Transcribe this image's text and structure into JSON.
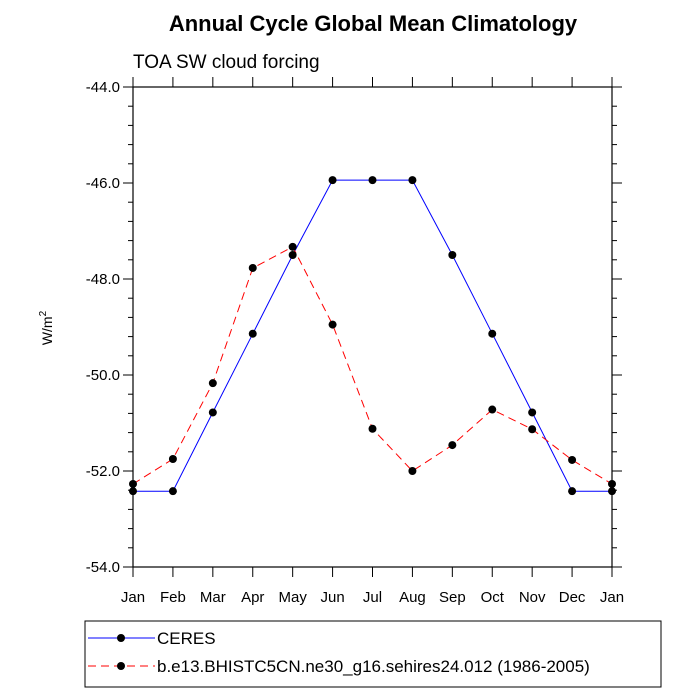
{
  "chart_data": {
    "type": "line",
    "title": "Annual Cycle Global Mean Climatology",
    "subtitle": "TOA SW cloud forcing",
    "xlabel": "",
    "ylabel_base": "W/m",
    "ylabel_sup": "2",
    "categories": [
      "Jan",
      "Feb",
      "Mar",
      "Apr",
      "May",
      "Jun",
      "Jul",
      "Aug",
      "Sep",
      "Oct",
      "Nov",
      "Dec",
      "Jan"
    ],
    "ylim": [
      -54.0,
      -44.0
    ],
    "yticks": [
      -54.0,
      -52.0,
      -50.0,
      -48.0,
      -46.0,
      -44.0
    ],
    "ytick_labels": [
      "-54.0",
      "-52.0",
      "-50.0",
      "-48.0",
      "-46.0",
      "-44.0"
    ],
    "grid": false,
    "legend_position": "bottom",
    "series": [
      {
        "name": "CERES",
        "color": "#0000ff",
        "style": "solid",
        "marker": "filled-circle",
        "values": [
          -52.42,
          -52.42,
          -50.78,
          -49.14,
          -47.5,
          -45.94,
          -45.94,
          -45.94,
          -47.5,
          -49.14,
          -50.78,
          -52.42,
          -52.42
        ]
      },
      {
        "name": "b.e13.BHISTC5CN.ne30_g16.sehires24.012 (1986-2005)",
        "color": "#ff0000",
        "style": "dashed",
        "marker": "filled-circle",
        "values": [
          -52.27,
          -51.75,
          -50.17,
          -47.77,
          -47.33,
          -48.95,
          -51.12,
          -52.0,
          -51.46,
          -50.72,
          -51.13,
          -51.77,
          -52.27
        ]
      }
    ]
  }
}
